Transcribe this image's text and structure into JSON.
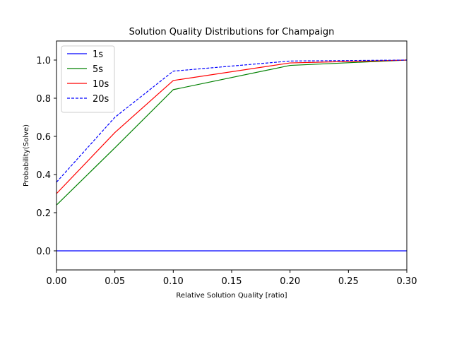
{
  "chart_data": {
    "type": "line",
    "title": "Solution Quality Distributions for Champaign",
    "xlabel": "Relative Solution Quality [ratio]",
    "ylabel": "Probability(Solve)",
    "xlim": [
      0.0,
      0.3
    ],
    "ylim": [
      -0.1,
      1.1
    ],
    "x_ticks": [
      "0.00",
      "0.05",
      "0.10",
      "0.15",
      "0.20",
      "0.25",
      "0.30"
    ],
    "y_ticks": [
      "0.0",
      "0.2",
      "0.4",
      "0.6",
      "0.8",
      "1.0"
    ],
    "grid": false,
    "legend_position": "top-left",
    "series": [
      {
        "name": "1s",
        "color": "#0000ff",
        "dash": "solid",
        "x": [
          0.0,
          0.05,
          0.1,
          0.2,
          0.3
        ],
        "y": [
          0.0,
          0.0,
          0.0,
          0.0,
          0.0
        ]
      },
      {
        "name": "5s",
        "color": "#008000",
        "dash": "solid",
        "x": [
          0.0,
          0.05,
          0.1,
          0.2,
          0.3
        ],
        "y": [
          0.24,
          0.54,
          0.845,
          0.972,
          1.0
        ]
      },
      {
        "name": "10s",
        "color": "#ff0000",
        "dash": "solid",
        "x": [
          0.0,
          0.05,
          0.1,
          0.2,
          0.3
        ],
        "y": [
          0.3,
          0.62,
          0.893,
          0.985,
          1.0
        ]
      },
      {
        "name": "20s",
        "color": "#0000ff",
        "dash": "dashed",
        "x": [
          0.0,
          0.05,
          0.1,
          0.2,
          0.3
        ],
        "y": [
          0.36,
          0.7,
          0.942,
          0.995,
          1.0
        ]
      }
    ]
  }
}
